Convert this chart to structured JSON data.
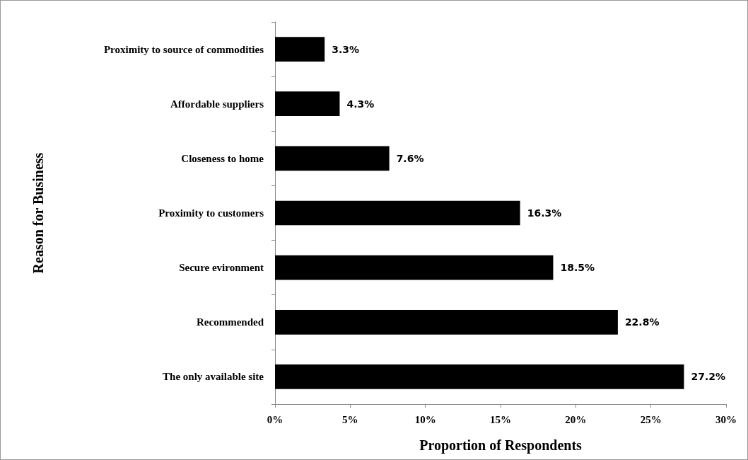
{
  "chart_data": {
    "type": "bar",
    "orientation": "horizontal",
    "xlabel": "Proportion of Respondents",
    "ylabel": "Reason for Business",
    "categories": [
      "Proximity to source of commodities",
      "Affordable suppliers",
      "Closeness to home",
      "Proximity to customers",
      "Secure evironment",
      "Recommended",
      "The only available site"
    ],
    "values": [
      3.3,
      4.3,
      7.6,
      16.3,
      18.5,
      22.8,
      27.2
    ],
    "value_labels": [
      "3.3%",
      "4.3%",
      "7.6%",
      "16.3%",
      "18.5%",
      "22.8%",
      "27.2%"
    ],
    "color": "#000000",
    "xlim": [
      0,
      30
    ],
    "xticks": [
      {
        "value": 0,
        "label": "0%"
      },
      {
        "value": 5,
        "label": "5%"
      },
      {
        "value": 10,
        "label": "10%"
      },
      {
        "value": 15,
        "label": "15%"
      },
      {
        "value": 20,
        "label": "20%"
      },
      {
        "value": 25,
        "label": "25%"
      },
      {
        "value": 30,
        "label": "30%"
      }
    ],
    "grid": false
  }
}
